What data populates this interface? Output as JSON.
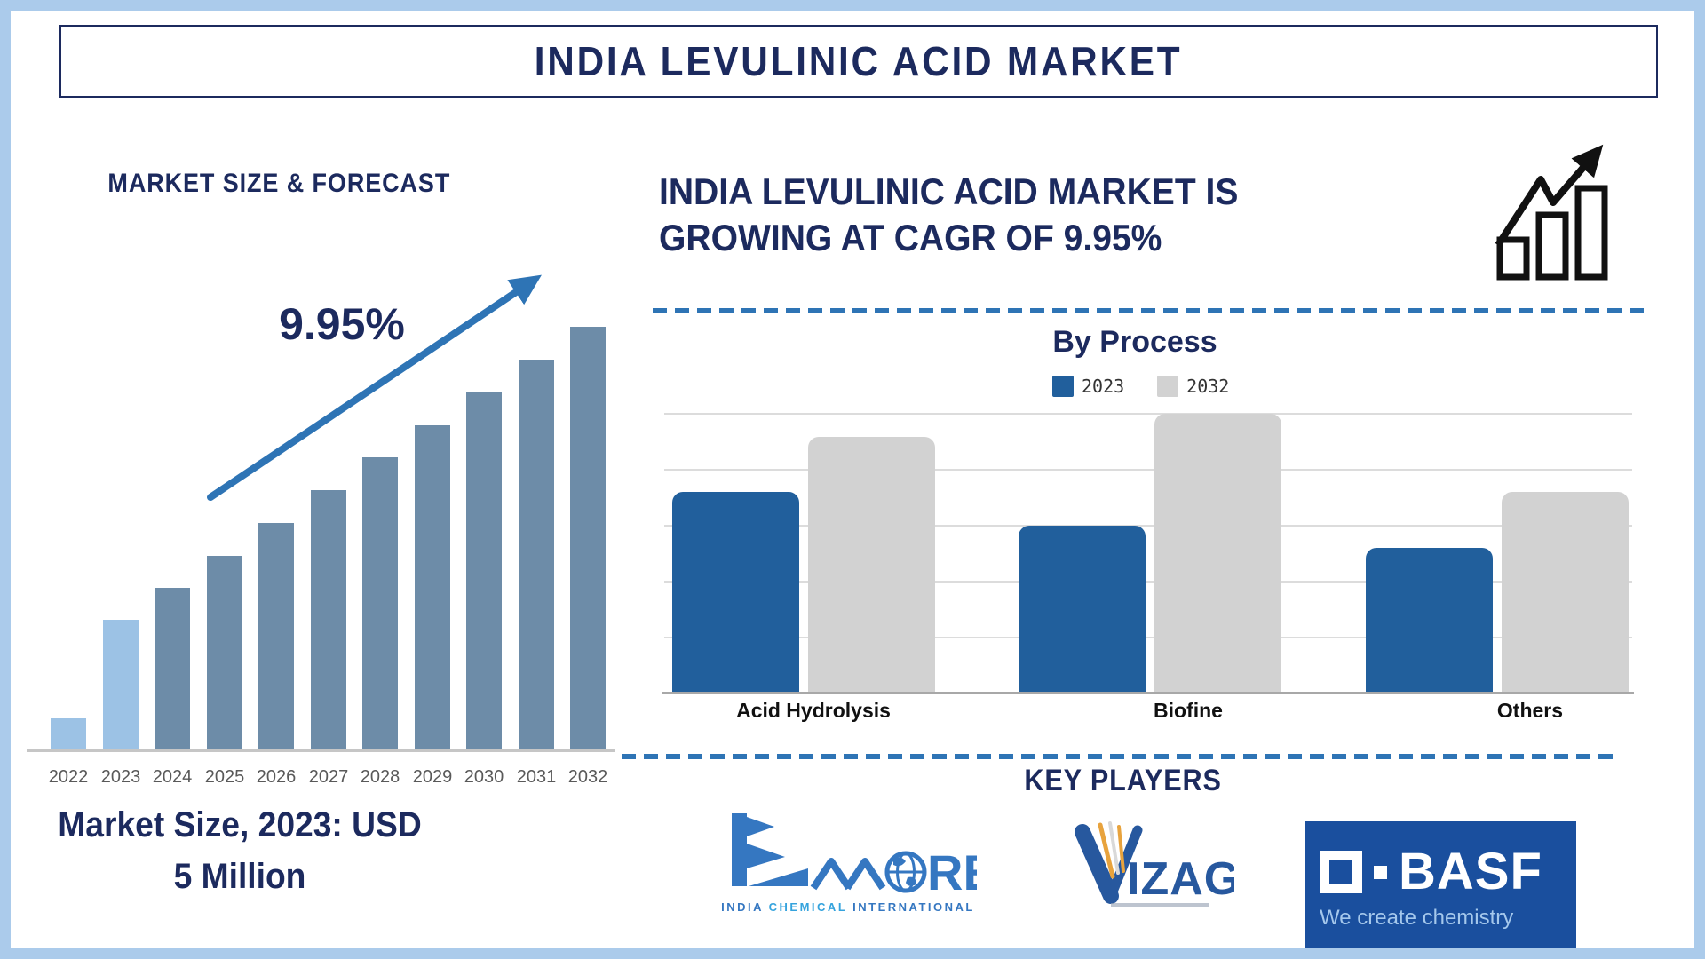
{
  "page": {
    "title": "INDIA LEVULINIC ACID MARKET"
  },
  "left_panel": {
    "heading": "MARKET SIZE & FORECAST",
    "cagr_annotation": "9.95%",
    "caption_line1": "Market Size, 2023: USD",
    "caption_line2": "5 Million"
  },
  "right_panel": {
    "headline_line1": "INDIA LEVULINIC ACID MARKET IS",
    "headline_line2": "GROWING AT CAGR OF 9.95%",
    "by_process_title": "By Process"
  },
  "key_players": {
    "heading": "KEY PLAYERS",
    "players": [
      {
        "name": "EMMORE",
        "wordmark_suffix": "RE",
        "caption_words": [
          "INDIA",
          "CHEMICAL",
          "INTERNATIONAL"
        ]
      },
      {
        "name": "VIZAG",
        "name_v": "V",
        "name_rest": "IZAG"
      },
      {
        "name": "BASF",
        "tagline": "We create chemistry"
      }
    ]
  },
  "colors": {
    "navy": "#1c2a5e",
    "accent": "#2e74b5",
    "bar-dark": "#6d8ca8",
    "bar-light": "#9cc2e5",
    "blue2023": "#215f9c",
    "gray2032": "#d2d2d2",
    "frame": "#abcbeb",
    "basf-blue": "#1a4f9e"
  },
  "chart_data": [
    {
      "id": "market_size_forecast",
      "type": "bar",
      "title": "MARKET SIZE & FORECAST",
      "categories": [
        "2022",
        "2023",
        "2024",
        "2025",
        "2026",
        "2027",
        "2028",
        "2029",
        "2030",
        "2031",
        "2032"
      ],
      "values": [
        7.5,
        30.8,
        38.3,
        45.9,
        53.7,
        61.4,
        69.2,
        76.7,
        84.5,
        92.2,
        100
      ],
      "unit": "relative bar height, no value axis shown (2032 = 100)",
      "annotation": "9.95%",
      "highlight_categories": [
        "2022",
        "2023"
      ],
      "bar_color": "#6d8ca8",
      "highlight_color": "#9cc2e5",
      "xlabel": "",
      "ylabel": "",
      "grid": false
    },
    {
      "id": "by_process",
      "type": "bar",
      "title": "By Process",
      "categories": [
        "Acid Hydrolysis",
        "Biofine",
        "Others"
      ],
      "series": [
        {
          "name": "2023",
          "color": "#215f9c",
          "values": [
            3.6,
            3.0,
            2.6
          ]
        },
        {
          "name": "2032",
          "color": "#d2d2d2",
          "values": [
            4.6,
            5.0,
            3.6
          ]
        }
      ],
      "unit": "gridline units, no value axis shown",
      "ylim": [
        0,
        5
      ],
      "grid": true,
      "legend_position": "top"
    }
  ]
}
